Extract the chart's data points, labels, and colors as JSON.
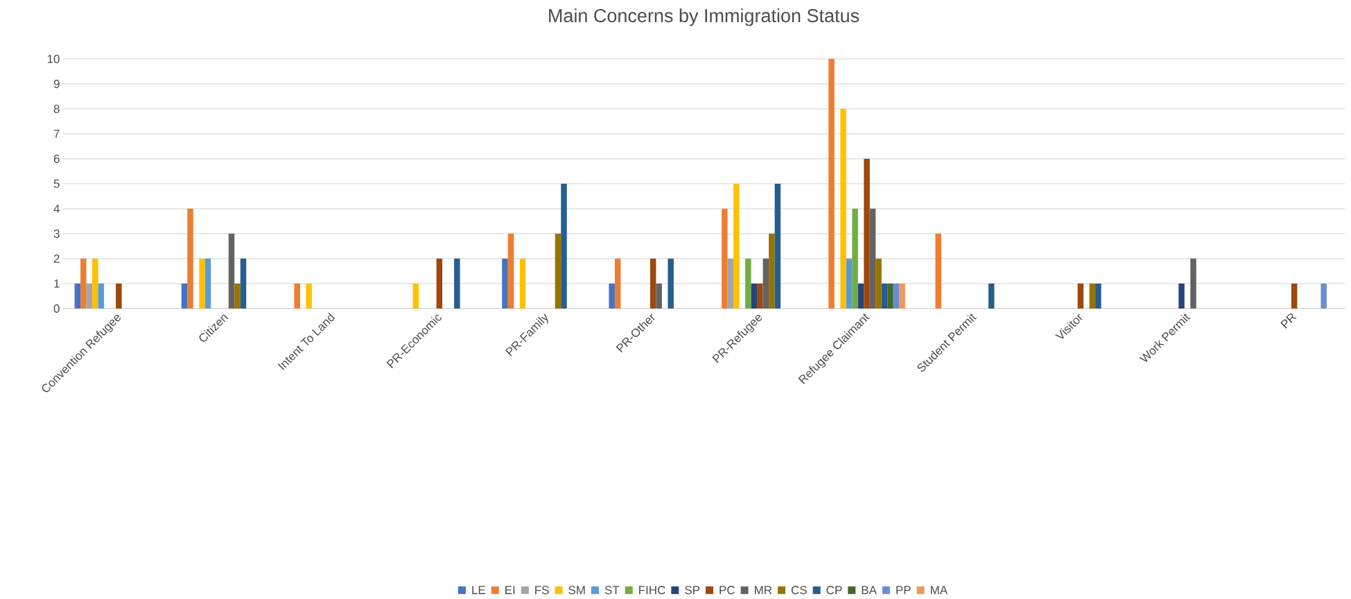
{
  "chart_data": {
    "type": "bar",
    "title": "Main Concerns by Immigration Status",
    "categories": [
      "Convention Refugee",
      "Citizen",
      "Intent To Land",
      "PR-Economic",
      "PR-Family",
      "PR-Other",
      "PR-Refugee",
      "Refugee Claimant",
      "Student Permit",
      "Visitor",
      "Work Permit",
      "PR"
    ],
    "series": [
      {
        "name": "LE",
        "color": "#4472c4",
        "values": [
          1,
          1,
          0,
          0,
          2,
          1,
          0,
          0,
          0,
          0,
          0,
          0
        ]
      },
      {
        "name": "EI",
        "color": "#ed7d31",
        "values": [
          2,
          4,
          1,
          0,
          3,
          2,
          4,
          10,
          3,
          0,
          0,
          0
        ]
      },
      {
        "name": "FS",
        "color": "#a5a5a5",
        "values": [
          1,
          0,
          0,
          0,
          0,
          0,
          2,
          0,
          0,
          0,
          0,
          0
        ]
      },
      {
        "name": "SM",
        "color": "#ffc000",
        "values": [
          2,
          2,
          1,
          1,
          2,
          0,
          5,
          8,
          0,
          0,
          0,
          0
        ]
      },
      {
        "name": "ST",
        "color": "#5b9bd5",
        "values": [
          1,
          2,
          0,
          0,
          0,
          0,
          0,
          2,
          0,
          0,
          0,
          0
        ]
      },
      {
        "name": "FIHC",
        "color": "#70ad47",
        "values": [
          0,
          0,
          0,
          0,
          0,
          0,
          2,
          4,
          0,
          0,
          0,
          0
        ]
      },
      {
        "name": "SP",
        "color": "#264478",
        "values": [
          0,
          0,
          0,
          0,
          0,
          0,
          1,
          1,
          0,
          0,
          1,
          0
        ]
      },
      {
        "name": "PC",
        "color": "#9e480e",
        "values": [
          1,
          0,
          0,
          2,
          0,
          2,
          1,
          6,
          0,
          1,
          0,
          1
        ]
      },
      {
        "name": "MR",
        "color": "#636363",
        "values": [
          0,
          3,
          0,
          0,
          0,
          1,
          2,
          4,
          0,
          0,
          2,
          0
        ]
      },
      {
        "name": "CS",
        "color": "#997300",
        "values": [
          0,
          1,
          0,
          0,
          3,
          0,
          3,
          2,
          0,
          1,
          0,
          0
        ]
      },
      {
        "name": "CP",
        "color": "#255e91",
        "values": [
          0,
          2,
          0,
          2,
          5,
          2,
          5,
          1,
          1,
          1,
          0,
          0
        ]
      },
      {
        "name": "BA",
        "color": "#43682b",
        "values": [
          0,
          0,
          0,
          0,
          0,
          0,
          0,
          1,
          0,
          0,
          0,
          0
        ]
      },
      {
        "name": "PP",
        "color": "#698ed0",
        "values": [
          0,
          0,
          0,
          0,
          0,
          0,
          0,
          1,
          0,
          0,
          0,
          1
        ]
      },
      {
        "name": "MA",
        "color": "#f1975a",
        "values": [
          0,
          0,
          0,
          0,
          0,
          0,
          0,
          1,
          0,
          0,
          0,
          0
        ]
      }
    ],
    "ylim": [
      0,
      10
    ],
    "yticks": [
      0,
      1,
      2,
      3,
      4,
      5,
      6,
      7,
      8,
      9,
      10
    ],
    "grid": "y",
    "legend": "bottom"
  }
}
